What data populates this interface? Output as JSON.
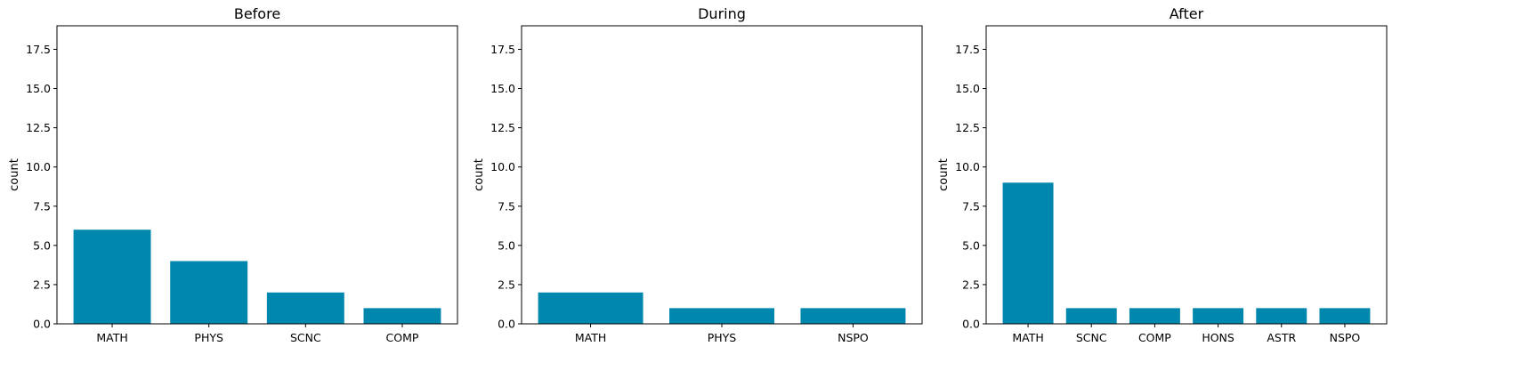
{
  "chart_data": [
    {
      "type": "bar",
      "title": "Before",
      "xlabel": "",
      "ylabel": "count",
      "ylim": [
        0,
        19
      ],
      "yticks": [
        0.0,
        2.5,
        5.0,
        7.5,
        10.0,
        12.5,
        15.0,
        17.5
      ],
      "ytick_labels": [
        "0.0",
        "2.5",
        "5.0",
        "7.5",
        "10.0",
        "12.5",
        "15.0",
        "17.5"
      ],
      "categories": [
        "MATH",
        "PHYS",
        "SCNC",
        "COMP"
      ],
      "values": [
        6,
        4,
        2,
        1
      ],
      "color": "#0087ad",
      "grid": false
    },
    {
      "type": "bar",
      "title": "During",
      "xlabel": "",
      "ylabel": "count",
      "ylim": [
        0,
        19
      ],
      "yticks": [
        0.0,
        2.5,
        5.0,
        7.5,
        10.0,
        12.5,
        15.0,
        17.5
      ],
      "ytick_labels": [
        "0.0",
        "2.5",
        "5.0",
        "7.5",
        "10.0",
        "12.5",
        "15.0",
        "17.5"
      ],
      "categories": [
        "MATH",
        "PHYS",
        "NSPO"
      ],
      "values": [
        2,
        1,
        1
      ],
      "color": "#0087ad",
      "grid": false
    },
    {
      "type": "bar",
      "title": "After",
      "xlabel": "",
      "ylabel": "count",
      "ylim": [
        0,
        19
      ],
      "yticks": [
        0.0,
        2.5,
        5.0,
        7.5,
        10.0,
        12.5,
        15.0,
        17.5
      ],
      "ytick_labels": [
        "0.0",
        "2.5",
        "5.0",
        "7.5",
        "10.0",
        "12.5",
        "15.0",
        "17.5"
      ],
      "categories": [
        "MATH",
        "SCNC",
        "COMP",
        "HONS",
        "ASTR",
        "NSPO"
      ],
      "values": [
        9,
        1,
        1,
        1,
        1,
        1
      ],
      "color": "#0087ad",
      "grid": false
    }
  ]
}
